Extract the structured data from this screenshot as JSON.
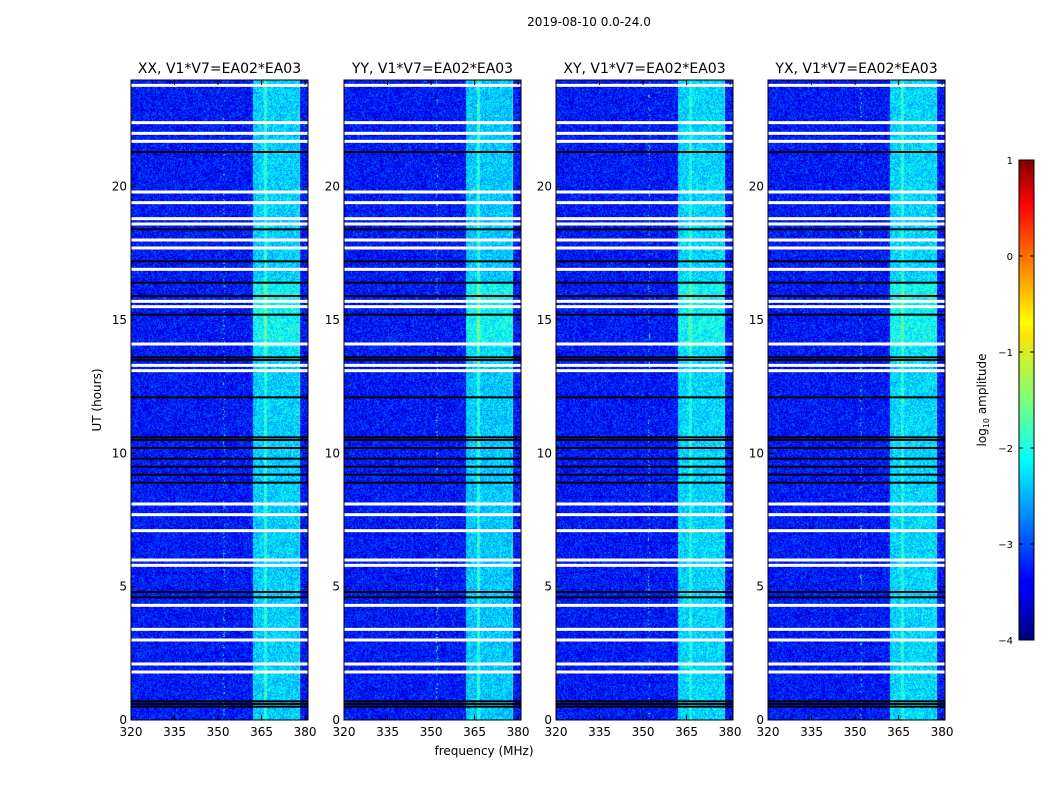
{
  "chart_data": {
    "type": "heatmap",
    "suptitle": "2019-08-10 0.0-24.0",
    "xlabel": "frequency (MHz)",
    "ylabel": "UT (hours)",
    "xlim": [
      320,
      381
    ],
    "ylim": [
      0,
      24
    ],
    "x_ticks": [
      320,
      335,
      350,
      365,
      380
    ],
    "y_ticks": [
      0,
      5,
      10,
      15,
      20
    ],
    "colorbar": {
      "label": "log",
      "label_sub": "10",
      "label_rest": " amplitude",
      "range": [
        -4,
        1
      ],
      "ticks": [
        1,
        0,
        -1,
        -2,
        -3,
        -4
      ],
      "tick_labels": [
        "1",
        "0",
        "−1",
        "−2",
        "−3",
        "−4"
      ],
      "colormap": "jet"
    },
    "background_level": -3.3,
    "rfi_band_mhz": [
      362,
      378
    ],
    "rfi_band_level": -2.1,
    "rfi_columns_mhz": [
      362.7,
      364.3,
      368.0,
      369.8,
      372.5,
      374.2,
      376.5
    ],
    "narrow_rfi_mhz": [
      352.0
    ],
    "panels": [
      {
        "title": "XX, V1*V7=EA02*EA03",
        "polarization": "XX",
        "rfi_strength": 1.0
      },
      {
        "title": "YY, V1*V7=EA02*EA03",
        "polarization": "YY",
        "rfi_strength": 1.15
      },
      {
        "title": "XY, V1*V7=EA02*EA03",
        "polarization": "XY",
        "rfi_strength": 0.85
      },
      {
        "title": "YX, V1*V7=EA02*EA03",
        "polarization": "YX",
        "rfi_strength": 0.85
      }
    ],
    "flagged_hours_white": [
      23.8,
      22.4,
      22.0,
      21.7,
      19.8,
      19.4,
      18.8,
      18.6,
      18.0,
      17.7,
      16.9,
      15.7,
      15.5,
      14.1,
      13.3,
      13.1,
      8.1,
      7.7,
      7.1,
      6.0,
      5.8,
      4.3,
      3.4,
      3.0,
      2.1,
      1.8
    ],
    "flagged_hours_black": [
      21.3,
      18.4,
      17.2,
      16.4,
      15.9,
      15.2,
      13.6,
      13.5,
      12.1,
      10.6,
      10.5,
      10.2,
      9.8,
      9.5,
      9.2,
      8.9,
      4.8,
      4.6,
      0.7,
      0.6,
      0.5
    ]
  }
}
